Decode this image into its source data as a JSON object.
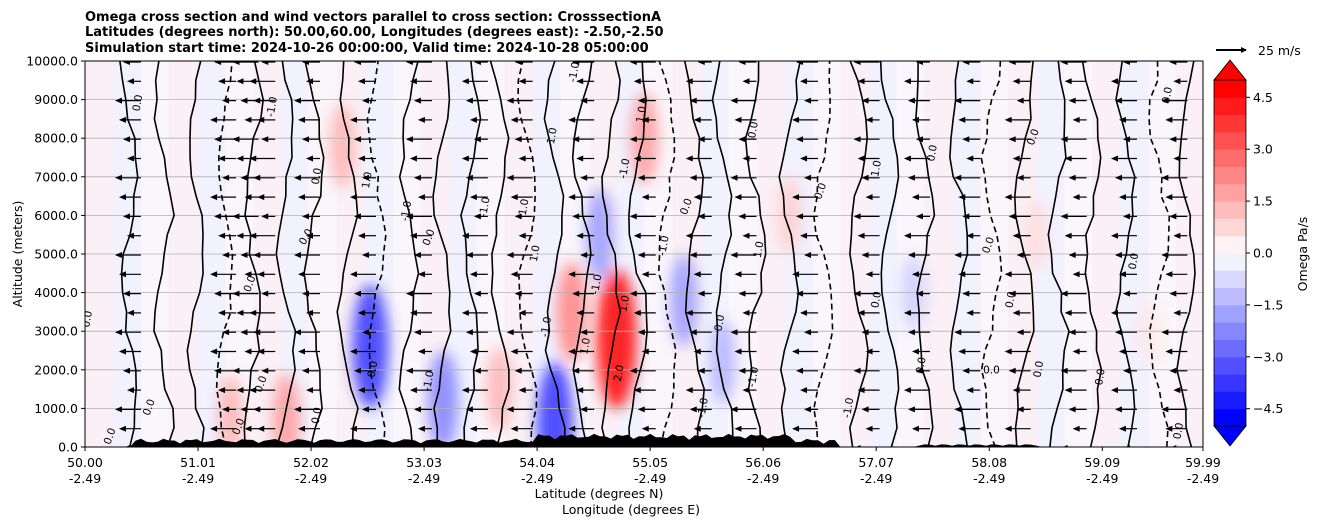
{
  "chart_data": {
    "type": "heatmap",
    "title_lines": [
      "Omega cross section and wind vectors parallel to cross section: CrosssectionA",
      "Latitudes (degrees north): 50.00,60.00, Longitudes (degrees east): -2.50,-2.50",
      "Simulation start time: 2024-10-26 00:00:00, Valid time: 2024-10-28 05:00:00"
    ],
    "ylabel": "Altitude (meters)",
    "xlabel_lines": [
      "Latitude (degrees N)",
      "Longitude (degrees E)"
    ],
    "ylim": [
      0,
      10000
    ],
    "xlim": [
      50.0,
      59.99
    ],
    "y_ticks": [
      {
        "value": 0,
        "label": "0.0"
      },
      {
        "value": 1000,
        "label": "1000.0"
      },
      {
        "value": 2000,
        "label": "2000.0"
      },
      {
        "value": 3000,
        "label": "3000.0"
      },
      {
        "value": 4000,
        "label": "4000.0"
      },
      {
        "value": 5000,
        "label": "5000.0"
      },
      {
        "value": 6000,
        "label": "6000.0"
      },
      {
        "value": 7000,
        "label": "7000.0"
      },
      {
        "value": 8000,
        "label": "8000.0"
      },
      {
        "value": 9000,
        "label": "9000.0"
      },
      {
        "value": 10000,
        "label": "10000.0"
      }
    ],
    "x_ticks": [
      {
        "value": 50.0,
        "lat": "50.00",
        "lon": "-2.49"
      },
      {
        "value": 51.01,
        "lat": "51.01",
        "lon": "-2.49"
      },
      {
        "value": 52.02,
        "lat": "52.02",
        "lon": "-2.49"
      },
      {
        "value": 53.03,
        "lat": "53.03",
        "lon": "-2.49"
      },
      {
        "value": 54.04,
        "lat": "54.04",
        "lon": "-2.49"
      },
      {
        "value": 55.05,
        "lat": "55.05",
        "lon": "-2.49"
      },
      {
        "value": 56.06,
        "lat": "56.06",
        "lon": "-2.49"
      },
      {
        "value": 57.07,
        "lat": "57.07",
        "lon": "-2.49"
      },
      {
        "value": 58.08,
        "lat": "58.08",
        "lon": "-2.49"
      },
      {
        "value": 59.09,
        "lat": "59.09",
        "lon": "-2.49"
      },
      {
        "value": 59.99,
        "lat": "59.99",
        "lon": "-2.49"
      }
    ],
    "grid": "horizontal",
    "colorbar": {
      "label": "Omega Pa/s",
      "range": [
        -5.0,
        5.0
      ],
      "extend": "both",
      "ticks": [
        {
          "value": 4.5,
          "label": "4.5"
        },
        {
          "value": 3.0,
          "label": "3.0"
        },
        {
          "value": 1.5,
          "label": "1.5"
        },
        {
          "value": 0.0,
          "label": "0.0"
        },
        {
          "value": -1.5,
          "label": "−1.5"
        },
        {
          "value": -3.0,
          "label": "−3.0"
        },
        {
          "value": -4.5,
          "label": "−4.5"
        }
      ],
      "colors": {
        "positive": "#ff0000",
        "negative": "#0000ff",
        "neutral": "#ffffff"
      }
    },
    "quiver_key": {
      "label": "25 m/s",
      "speed": 25
    },
    "wind_vectors": {
      "dominant_direction": "southward (toward lower latitude)",
      "typical_speed_ms": 15
    },
    "omega_features": [
      {
        "center_lat": 51.3,
        "center_alt": 800,
        "value": 1.5
      },
      {
        "center_lat": 51.8,
        "center_alt": 700,
        "value": 2.0
      },
      {
        "center_lat": 52.3,
        "center_alt": 7800,
        "value": 1.5
      },
      {
        "center_lat": 52.55,
        "center_alt": 2600,
        "value": -4.0
      },
      {
        "center_lat": 53.2,
        "center_alt": 1200,
        "value": -2.5
      },
      {
        "center_lat": 53.7,
        "center_alt": 1500,
        "value": 1.5
      },
      {
        "center_lat": 54.2,
        "center_alt": 600,
        "value": -4.0
      },
      {
        "center_lat": 54.35,
        "center_alt": 3500,
        "value": 2.5
      },
      {
        "center_lat": 54.6,
        "center_alt": 5500,
        "value": -2.0
      },
      {
        "center_lat": 54.75,
        "center_alt": 2800,
        "value": 5.0
      },
      {
        "center_lat": 55.0,
        "center_alt": 8000,
        "value": 2.0
      },
      {
        "center_lat": 55.35,
        "center_alt": 3800,
        "value": -2.0
      },
      {
        "center_lat": 55.7,
        "center_alt": 2200,
        "value": -1.5
      },
      {
        "center_lat": 56.3,
        "center_alt": 6000,
        "value": 1.0
      },
      {
        "center_lat": 57.4,
        "center_alt": 4000,
        "value": -1.0
      },
      {
        "center_lat": 58.5,
        "center_alt": 5500,
        "value": 0.7
      },
      {
        "center_lat": 59.5,
        "center_alt": 3000,
        "value": 0.5
      }
    ],
    "contour_labels": [
      {
        "text": "0.0",
        "lat": 50.5,
        "alt": 8900,
        "rot": -80
      },
      {
        "text": "0.0",
        "lat": 50.05,
        "alt": 3300,
        "rot": -80
      },
      {
        "text": "0.0",
        "lat": 50.6,
        "alt": 1000,
        "rot": -70
      },
      {
        "text": "0.0",
        "lat": 50.25,
        "alt": 250,
        "rot": -70
      },
      {
        "text": "0.0",
        "lat": 51.6,
        "alt": 1600,
        "rot": -70
      },
      {
        "text": "0.0",
        "lat": 51.4,
        "alt": 500,
        "rot": -70
      },
      {
        "text": "0.0",
        "lat": 51.5,
        "alt": 4200,
        "rot": -70
      },
      {
        "text": "0.0",
        "lat": 52.1,
        "alt": 7000,
        "rot": -80
      },
      {
        "text": "0.0",
        "lat": 52.0,
        "alt": 5400,
        "rot": -60
      },
      {
        "text": "-1.0",
        "lat": 51.7,
        "alt": 8800,
        "rot": -80
      },
      {
        "text": "1.0",
        "lat": 52.55,
        "alt": 6900,
        "rot": -80
      },
      {
        "text": "-1.0",
        "lat": 52.9,
        "alt": 6100,
        "rot": -80
      },
      {
        "text": "0.0",
        "lat": 53.1,
        "alt": 5400,
        "rot": -70
      },
      {
        "text": "0.0",
        "lat": 52.6,
        "alt": 2000,
        "rot": -80
      },
      {
        "text": "0.0",
        "lat": 52.1,
        "alt": 800,
        "rot": -80
      },
      {
        "text": "-1.0",
        "lat": 53.1,
        "alt": 1700,
        "rot": -80
      },
      {
        "text": "-1.0",
        "lat": 53.6,
        "alt": 6200,
        "rot": -80
      },
      {
        "text": "1.0",
        "lat": 53.95,
        "alt": 6200,
        "rot": -80
      },
      {
        "text": "-1.0",
        "lat": 54.2,
        "alt": 8000,
        "rot": -80
      },
      {
        "text": "-1.0",
        "lat": 54.4,
        "alt": 9700,
        "rot": -80
      },
      {
        "text": "1.0",
        "lat": 54.05,
        "alt": 5000,
        "rot": -80
      },
      {
        "text": "-1.0",
        "lat": 54.15,
        "alt": 3100,
        "rot": -80
      },
      {
        "text": "1.0",
        "lat": 54.5,
        "alt": 2600,
        "rot": -80
      },
      {
        "text": "-1.0",
        "lat": 54.6,
        "alt": 4200,
        "rot": -80
      },
      {
        "text": "2.0",
        "lat": 54.8,
        "alt": 1900,
        "rot": -80
      },
      {
        "text": "1.0",
        "lat": 54.85,
        "alt": 3700,
        "rot": -80
      },
      {
        "text": "-1.0",
        "lat": 54.85,
        "alt": 7200,
        "rot": -80
      },
      {
        "text": "1.0",
        "lat": 55.0,
        "alt": 8600,
        "rot": -80
      },
      {
        "text": "-1.0",
        "lat": 55.2,
        "alt": 5200,
        "rot": -80
      },
      {
        "text": "0.0",
        "lat": 55.4,
        "alt": 6200,
        "rot": -70
      },
      {
        "text": "0.0",
        "lat": 55.7,
        "alt": 3200,
        "rot": -80
      },
      {
        "text": "-1.0",
        "lat": 56.0,
        "alt": 1800,
        "rot": -80
      },
      {
        "text": "-1.0",
        "lat": 55.55,
        "alt": 1000,
        "rot": -80
      },
      {
        "text": "0.0",
        "lat": 56.0,
        "alt": 8200,
        "rot": -80
      },
      {
        "text": "1.0",
        "lat": 56.05,
        "alt": 5100,
        "rot": -80
      },
      {
        "text": "0.0",
        "lat": 56.6,
        "alt": 6600,
        "rot": -70
      },
      {
        "text": "0.0",
        "lat": 57.1,
        "alt": 3800,
        "rot": -80
      },
      {
        "text": "1.0",
        "lat": 57.1,
        "alt": 7200,
        "rot": -80
      },
      {
        "text": "-1.0",
        "lat": 56.85,
        "alt": 1000,
        "rot": -80
      },
      {
        "text": "0.0",
        "lat": 57.5,
        "alt": 2100,
        "rot": -80
      },
      {
        "text": "0.0",
        "lat": 57.6,
        "alt": 7600,
        "rot": -80
      },
      {
        "text": "0.0",
        "lat": 58.1,
        "alt": 5200,
        "rot": -70
      },
      {
        "text": "0.0",
        "lat": 58.1,
        "alt": 1900,
        "rot": 0
      },
      {
        "text": "0.0",
        "lat": 58.3,
        "alt": 3800,
        "rot": -80
      },
      {
        "text": "0.0",
        "lat": 58.5,
        "alt": 8000,
        "rot": -70
      },
      {
        "text": "0.0",
        "lat": 58.55,
        "alt": 2000,
        "rot": -80
      },
      {
        "text": "0.0",
        "lat": 59.1,
        "alt": 1800,
        "rot": -80
      },
      {
        "text": "0.0",
        "lat": 59.4,
        "alt": 4800,
        "rot": -80
      },
      {
        "text": "0.0",
        "lat": 59.7,
        "alt": 9100,
        "rot": -80
      },
      {
        "text": "0.0",
        "lat": 59.8,
        "alt": 400,
        "rot": -80
      }
    ]
  }
}
